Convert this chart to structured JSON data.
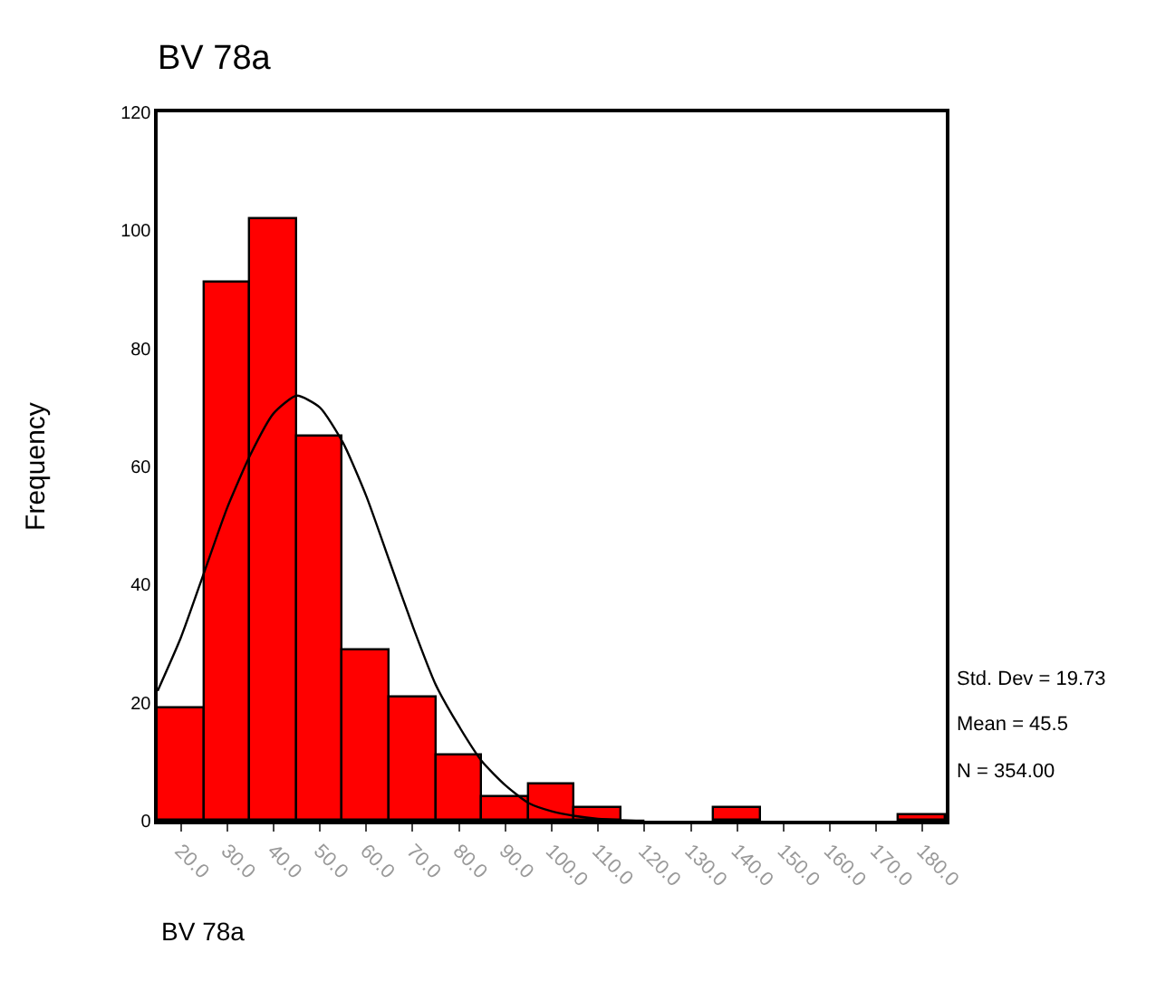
{
  "chart_data": {
    "type": "histogram",
    "title": "BV 78a",
    "xlabel": "BV 78a",
    "ylabel": "Frequency",
    "bins": [
      15,
      25,
      35,
      45,
      55,
      65,
      75,
      85,
      95,
      105,
      115,
      125,
      135,
      145,
      155,
      165,
      175,
      185
    ],
    "values": [
      19,
      91,
      102,
      65,
      29,
      21,
      11,
      4,
      6,
      2,
      0,
      0,
      2,
      0,
      0,
      0,
      1
    ],
    "color": "#ff0000",
    "series": [
      {
        "type": "line",
        "color": "#000000",
        "x": [
          15,
          20,
          25,
          30,
          35,
          40,
          45,
          50,
          55,
          60,
          65,
          70,
          75,
          80,
          85,
          90,
          95,
          100,
          105,
          110,
          115,
          120
        ],
        "values": [
          22,
          31,
          42,
          53,
          62,
          69,
          72,
          70,
          64,
          55,
          44,
          33,
          23,
          16,
          10,
          6,
          3,
          1.6,
          0.8,
          0.3,
          0.1,
          0
        ]
      }
    ],
    "xlim": [
      15,
      185
    ],
    "xticks": [
      {
        "value": 20,
        "label": "20.0"
      },
      {
        "value": 30,
        "label": "30.0"
      },
      {
        "value": 40,
        "label": "40.0"
      },
      {
        "value": 50,
        "label": "50.0"
      },
      {
        "value": 60,
        "label": "60.0"
      },
      {
        "value": 70,
        "label": "70.0"
      },
      {
        "value": 80,
        "label": "80.0"
      },
      {
        "value": 90,
        "label": "90.0"
      },
      {
        "value": 100,
        "label": "100.0"
      },
      {
        "value": 110,
        "label": "110.0"
      },
      {
        "value": 120,
        "label": "120.0"
      },
      {
        "value": 130,
        "label": "130.0"
      },
      {
        "value": 140,
        "label": "140.0"
      },
      {
        "value": 150,
        "label": "150.0"
      },
      {
        "value": 160,
        "label": "160.0"
      },
      {
        "value": 170,
        "label": "170.0"
      },
      {
        "value": 180,
        "label": "180.0"
      }
    ],
    "ylim": [
      0,
      120
    ],
    "yticks": [
      0,
      20,
      40,
      60,
      80,
      100,
      120
    ],
    "grid": false,
    "marker": "none",
    "line_style": "solid",
    "annotations": [
      "Std. Dev = 19.73",
      "Mean = 45.5",
      "N = 354.00"
    ]
  }
}
